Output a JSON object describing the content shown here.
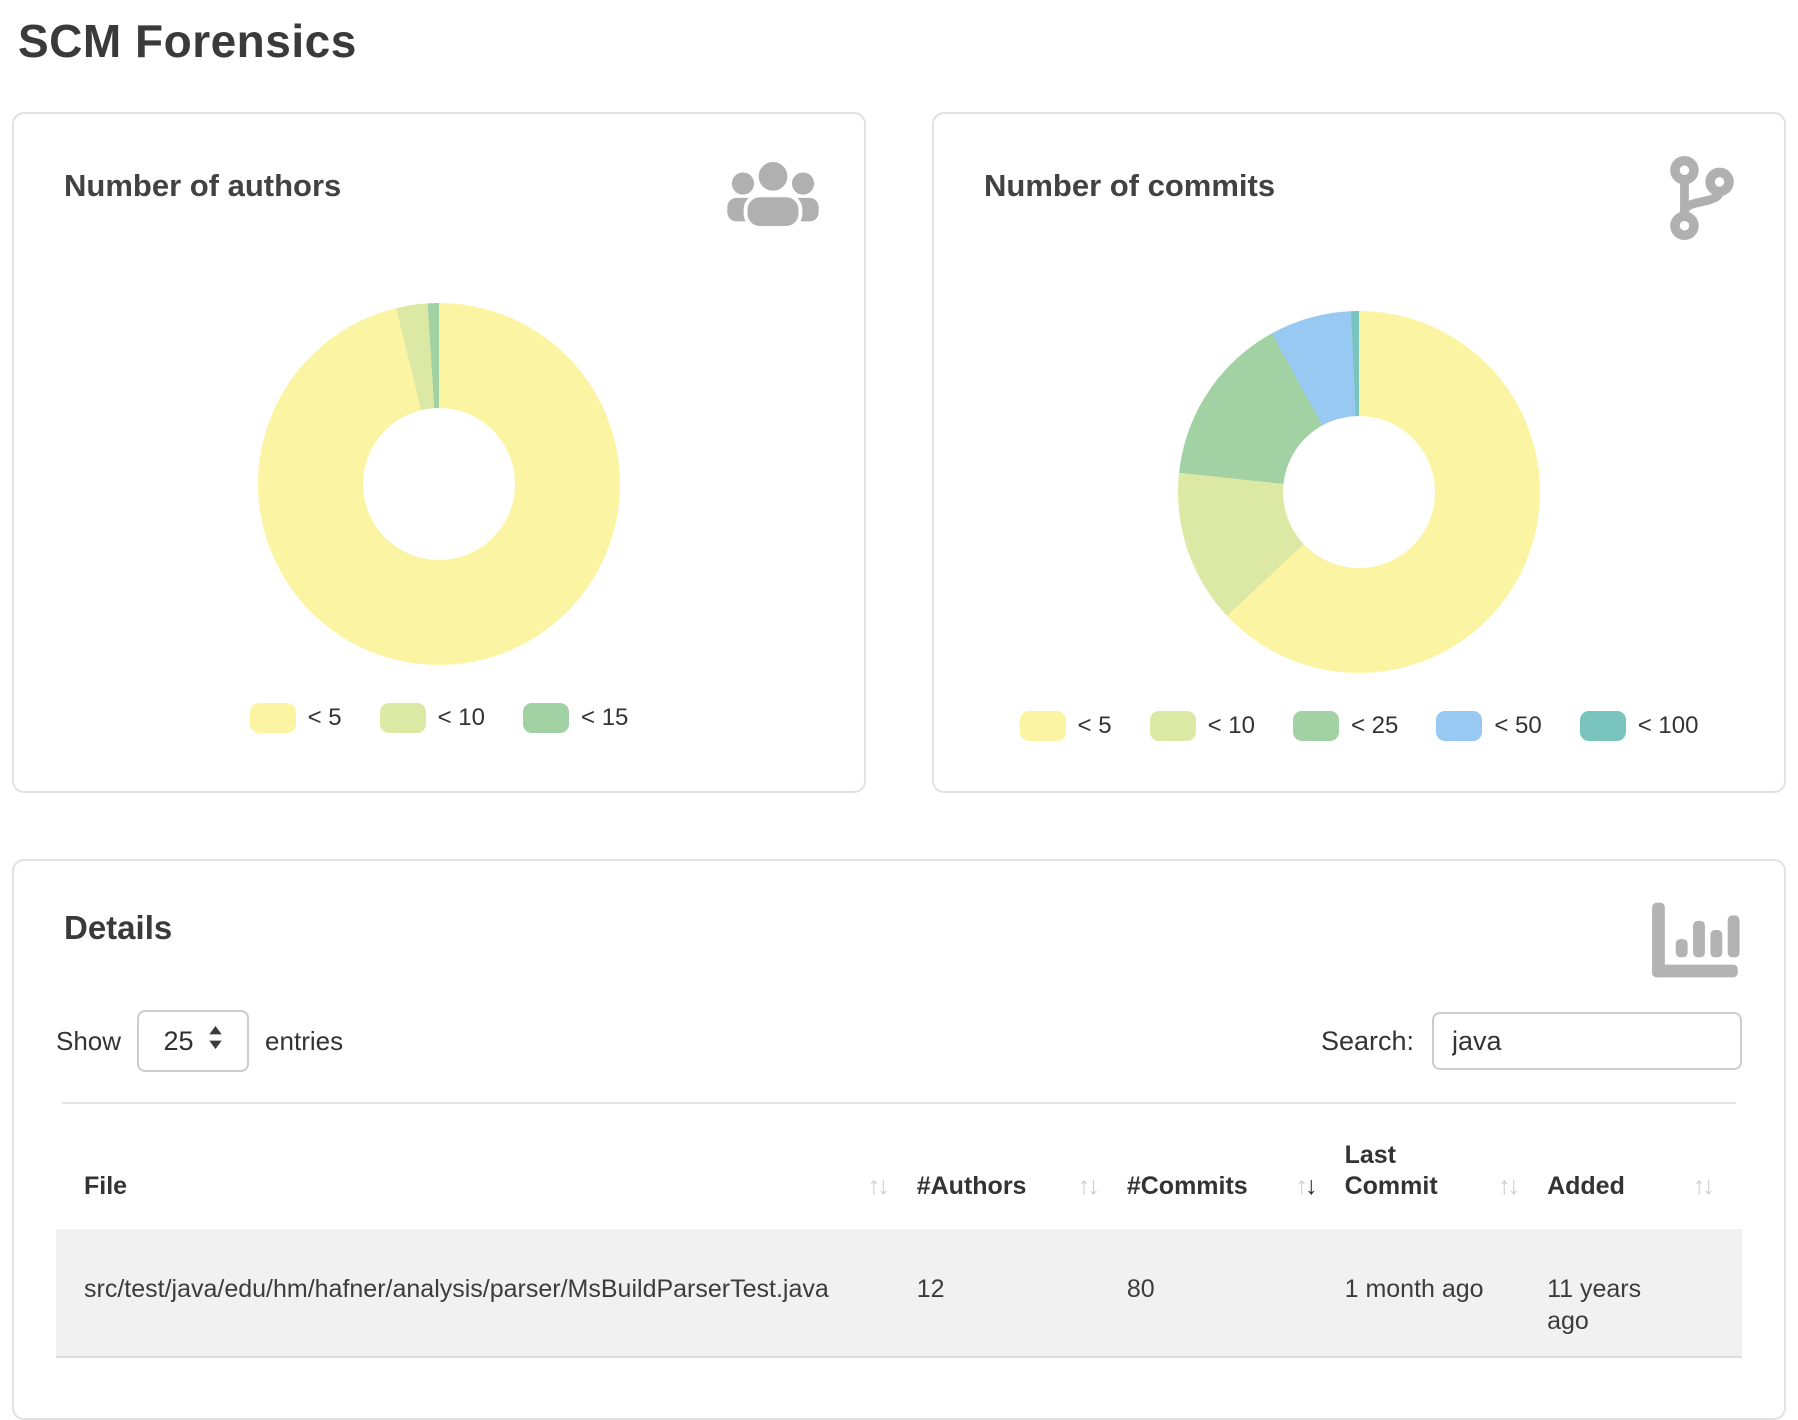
{
  "page": {
    "title": "SCM Forensics"
  },
  "colors": {
    "yellow": "#fbf5a3",
    "yellow_green": "#dce9a4",
    "green": "#a2d1a3",
    "blue": "#97c9f2",
    "teal": "#79c4bd",
    "icon_gray": "#b0b0b0",
    "row_stripe": "#f1f1f1"
  },
  "authors_card": {
    "title": "Number of authors",
    "icon": "users-icon"
  },
  "commits_card": {
    "title": "Number of commits",
    "icon": "code-branch-icon"
  },
  "details_card": {
    "title": "Details",
    "icon": "bar-chart-icon",
    "show_label": "Show",
    "page_size": "25",
    "entries_label": "entries",
    "search_label": "Search:",
    "search_value": "java",
    "table": {
      "columns": [
        {
          "label": "File",
          "sort": "none"
        },
        {
          "label": "#Authors",
          "sort": "none"
        },
        {
          "label": "#Commits",
          "sort": "desc"
        },
        {
          "label": "Last Commit",
          "sort": "none"
        },
        {
          "label": "Added",
          "sort": "none"
        }
      ],
      "rows": [
        {
          "file": "src/test/java/edu/hm/hafner/analysis/parser/MsBuildParserTest.java",
          "authors": "12",
          "commits": "80",
          "last_commit": "1 month ago",
          "added": "11 years ago"
        }
      ]
    }
  },
  "chart_data": [
    {
      "type": "pie",
      "subtype": "donut",
      "title": "Number of authors",
      "legend_position": "bottom",
      "labels": [
        "< 5",
        "< 10",
        "< 15"
      ],
      "values": [
        96.2,
        2.8,
        1.0
      ],
      "value_unit": "percent of files",
      "colors": [
        "#fbf5a3",
        "#dce9a4",
        "#a2d1a3"
      ],
      "start_angle_deg": 0,
      "direction": "clockwise"
    },
    {
      "type": "pie",
      "subtype": "donut",
      "title": "Number of commits",
      "legend_position": "bottom",
      "labels": [
        "< 5",
        "< 10",
        "< 25",
        "< 50",
        "< 100"
      ],
      "values": [
        63.0,
        13.7,
        15.3,
        7.3,
        0.7
      ],
      "value_unit": "percent of files",
      "colors": [
        "#fbf5a3",
        "#dce9a4",
        "#a2d1a3",
        "#97c9f2",
        "#79c4bd"
      ],
      "start_angle_deg": 0,
      "direction": "clockwise"
    }
  ]
}
